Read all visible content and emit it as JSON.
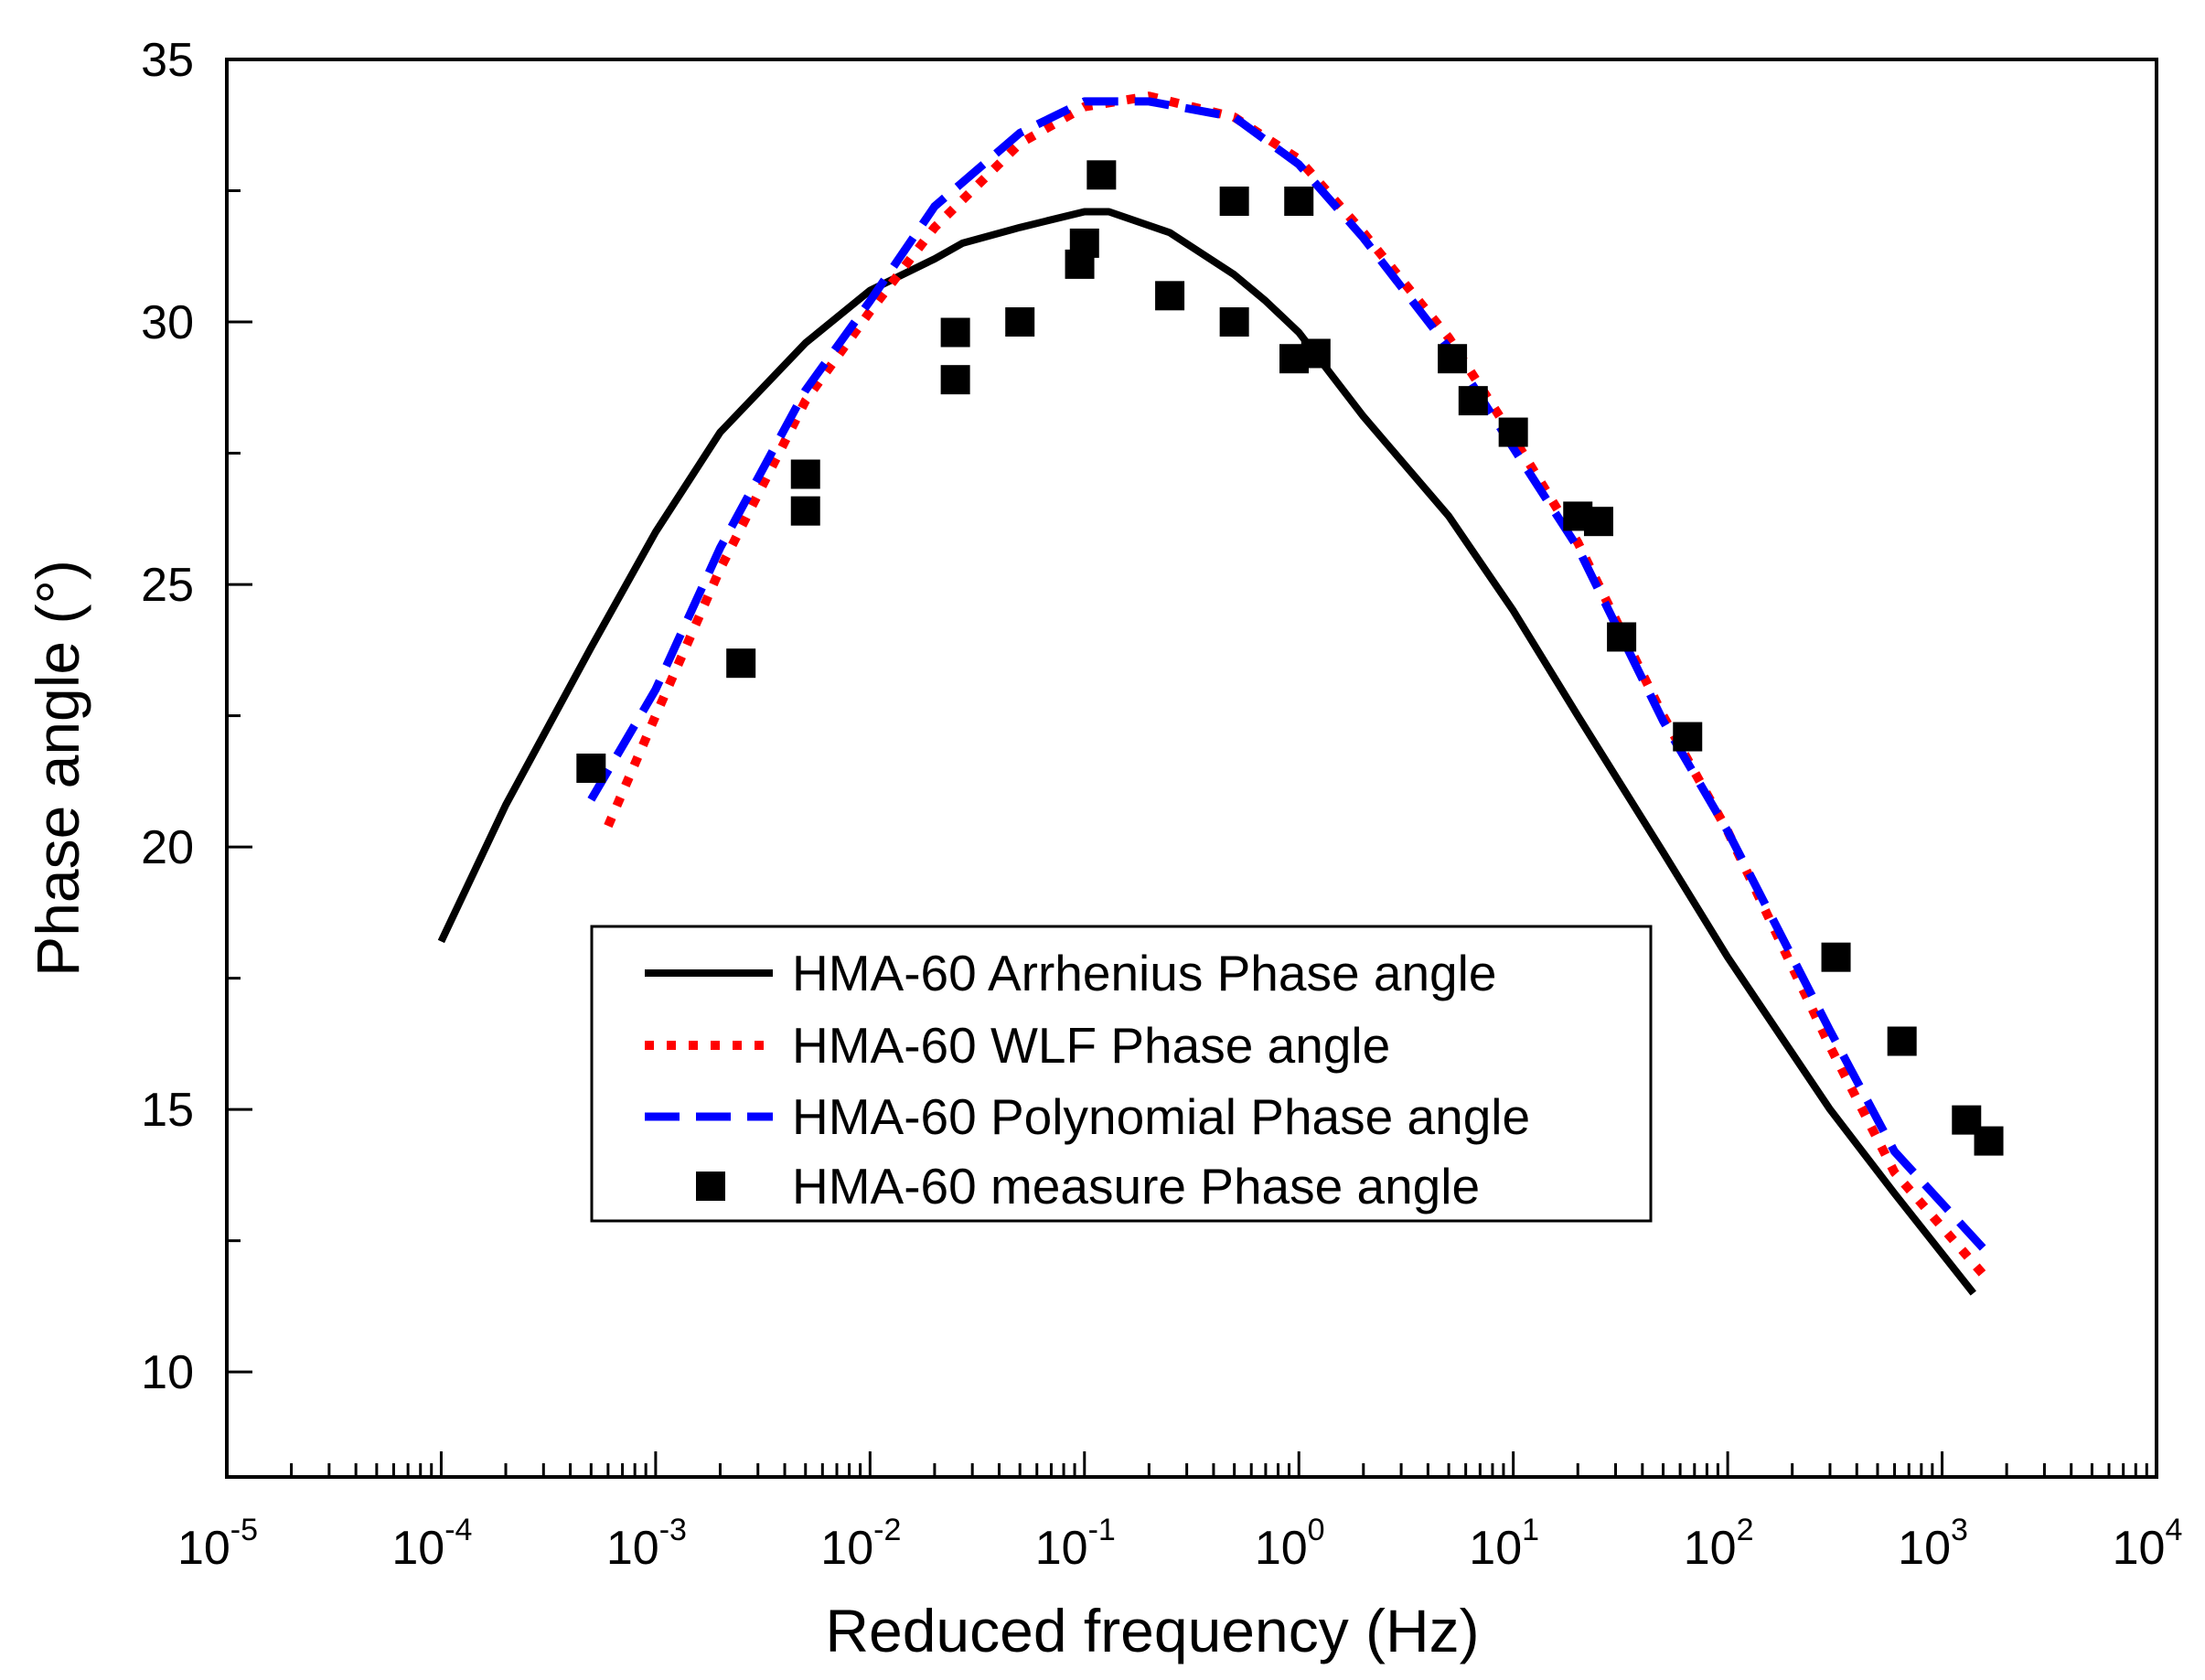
{
  "chart_data": {
    "type": "line",
    "title": "",
    "xlabel": "Reduced frequency (Hz)",
    "ylabel": "Phase angle (°)",
    "xscale": "log",
    "xlim": [
      1e-05,
      10000
    ],
    "ylim": [
      8,
      35
    ],
    "grid": false,
    "legend_position": "lower-center",
    "x_ticks": [
      {
        "value": 1e-05,
        "base": "10",
        "exp": "-5"
      },
      {
        "value": 0.0001,
        "base": "10",
        "exp": "-4"
      },
      {
        "value": 0.001,
        "base": "10",
        "exp": "-3"
      },
      {
        "value": 0.01,
        "base": "10",
        "exp": "-2"
      },
      {
        "value": 0.1,
        "base": "10",
        "exp": "-1"
      },
      {
        "value": 1,
        "base": "10",
        "exp": "0"
      },
      {
        "value": 10,
        "base": "10",
        "exp": "1"
      },
      {
        "value": 100,
        "base": "10",
        "exp": "2"
      },
      {
        "value": 1000,
        "base": "10",
        "exp": "3"
      },
      {
        "value": 10000,
        "base": "10",
        "exp": "4"
      }
    ],
    "y_ticks": [
      {
        "value": 10,
        "label": "10"
      },
      {
        "value": 15,
        "label": "15"
      },
      {
        "value": 20,
        "label": "20"
      },
      {
        "value": 25,
        "label": "25"
      },
      {
        "value": 30,
        "label": "30"
      },
      {
        "value": 35,
        "label": "35"
      }
    ],
    "series": [
      {
        "name": "HMA-60 Arrhenius Phase angle",
        "style": "solid",
        "color": "#000000",
        "x": [
          0.0001,
          0.0002,
          0.0005,
          0.001,
          0.002,
          0.005,
          0.01,
          0.02,
          0.027,
          0.05,
          0.1,
          0.13,
          0.25,
          0.5,
          0.7,
          1,
          2,
          5,
          10,
          20,
          50,
          100,
          300,
          600,
          1400
        ],
        "y": [
          18.2,
          20.8,
          23.8,
          26.0,
          27.9,
          29.6,
          30.6,
          31.2,
          31.5,
          31.8,
          32.1,
          32.1,
          31.7,
          30.9,
          30.4,
          29.8,
          28.2,
          26.3,
          24.5,
          22.5,
          19.9,
          17.9,
          15.0,
          13.4,
          11.5
        ]
      },
      {
        "name": "HMA-60 WLF Phase angle",
        "style": "dotted",
        "color": "#ff0000",
        "x": [
          0.0006,
          0.001,
          0.002,
          0.005,
          0.01,
          0.02,
          0.05,
          0.1,
          0.2,
          0.5,
          1,
          2,
          5,
          10,
          20,
          50,
          100,
          300,
          600,
          1600
        ],
        "y": [
          20.4,
          22.5,
          25.3,
          28.5,
          30.2,
          31.8,
          33.4,
          34.1,
          34.3,
          33.9,
          33.1,
          31.7,
          29.7,
          27.8,
          25.8,
          22.5,
          20.3,
          16.2,
          13.8,
          11.8
        ]
      },
      {
        "name": "HMA-60 Polynomial Phase angle",
        "style": "dashed",
        "color": "#0000ff",
        "x": [
          0.0005,
          0.001,
          0.002,
          0.005,
          0.01,
          0.02,
          0.05,
          0.1,
          0.2,
          0.5,
          1,
          2,
          5,
          10,
          20,
          50,
          100,
          300,
          600,
          1600
        ],
        "y": [
          20.9,
          23.0,
          25.7,
          28.7,
          30.4,
          32.2,
          33.6,
          34.2,
          34.2,
          33.9,
          33.0,
          31.6,
          29.5,
          27.6,
          25.7,
          22.4,
          20.3,
          16.5,
          14.2,
          12.3
        ]
      },
      {
        "name": "HMA-60 measure Phase angle",
        "style": "markers",
        "marker": "square",
        "color": "#000000",
        "x": [
          0.0005,
          0.0025,
          0.005,
          0.005,
          0.025,
          0.025,
          0.05,
          0.095,
          0.1,
          0.12,
          0.25,
          0.5,
          0.5,
          0.95,
          1.0,
          1.2,
          5.2,
          6.5,
          10,
          20,
          25,
          32,
          65,
          320,
          650,
          1300,
          1650
        ],
        "y": [
          21.5,
          23.5,
          27.1,
          26.4,
          29.8,
          28.9,
          30.0,
          31.1,
          31.5,
          32.8,
          30.5,
          30.0,
          32.3,
          29.3,
          32.3,
          29.4,
          29.3,
          28.5,
          27.9,
          26.3,
          26.2,
          24.0,
          22.1,
          17.9,
          16.3,
          14.8,
          14.4
        ]
      }
    ]
  }
}
